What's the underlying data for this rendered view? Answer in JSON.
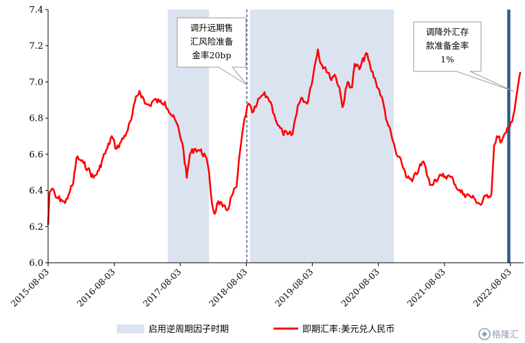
{
  "chart_data": {
    "type": "line",
    "title": "",
    "xlabel": "",
    "ylabel": "",
    "ylim": [
      6.0,
      7.4
    ],
    "yticks": [
      "6.0",
      "6.2",
      "6.4",
      "6.6",
      "6.8",
      "7.0",
      "7.2",
      "7.4"
    ],
    "xlim": [
      "2015-08-03",
      "2022-10-15"
    ],
    "xticks": [
      "2015-08-03",
      "2016-08-03",
      "2017-08-03",
      "2018-08-03",
      "2019-08-03",
      "2020-08-03",
      "2021-08-03",
      "2022-08-03"
    ],
    "grid": false,
    "legend_position": "bottom",
    "shaded_periods": {
      "name": "启用逆周期因子时期",
      "color": "#dbe3f0",
      "ranges": [
        [
          "2017-05-26",
          "2018-01-09"
        ],
        [
          "2018-08-24",
          "2020-10-27"
        ]
      ]
    },
    "event_lines": [
      {
        "date": "2018-08-06",
        "style": "dashed",
        "color": "#1f3864"
      },
      {
        "date": "2022-07-25",
        "style": "solid-thick",
        "color": "#2e5a8a"
      }
    ],
    "annotations": [
      {
        "lines": [
          "调升远期售",
          "汇风险准备",
          "金率20bp"
        ],
        "points_to": "2018-08-06"
      },
      {
        "lines": [
          "调降外汇存",
          "款准备金率",
          "1%"
        ],
        "points_to": "2022-09-05"
      }
    ],
    "series": [
      {
        "name": "即期汇率:美元兑人民币",
        "color": "#ff0000",
        "points": [
          [
            "2015-08-03",
            6.21
          ],
          [
            "2015-08-11",
            6.39
          ],
          [
            "2015-08-25",
            6.41
          ],
          [
            "2015-09-15",
            6.36
          ],
          [
            "2015-10-15",
            6.35
          ],
          [
            "2015-11-05",
            6.33
          ],
          [
            "2015-11-25",
            6.38
          ],
          [
            "2015-12-20",
            6.44
          ],
          [
            "2016-01-07",
            6.58
          ],
          [
            "2016-01-25",
            6.57
          ],
          [
            "2016-02-15",
            6.55
          ],
          [
            "2016-03-10",
            6.52
          ],
          [
            "2016-04-10",
            6.47
          ],
          [
            "2016-05-10",
            6.51
          ],
          [
            "2016-06-01",
            6.58
          ],
          [
            "2016-06-25",
            6.63
          ],
          [
            "2016-07-20",
            6.7
          ],
          [
            "2016-08-15",
            6.63
          ],
          [
            "2016-09-10",
            6.67
          ],
          [
            "2016-10-10",
            6.72
          ],
          [
            "2016-11-05",
            6.79
          ],
          [
            "2016-11-25",
            6.89
          ],
          [
            "2016-12-20",
            6.95
          ],
          [
            "2017-01-05",
            6.92
          ],
          [
            "2017-01-20",
            6.88
          ],
          [
            "2017-02-15",
            6.87
          ],
          [
            "2017-03-10",
            6.9
          ],
          [
            "2017-04-10",
            6.89
          ],
          [
            "2017-05-10",
            6.89
          ],
          [
            "2017-05-26",
            6.85
          ],
          [
            "2017-06-20",
            6.81
          ],
          [
            "2017-07-15",
            6.77
          ],
          [
            "2017-08-15",
            6.66
          ],
          [
            "2017-09-08",
            6.47
          ],
          [
            "2017-09-25",
            6.6
          ],
          [
            "2017-10-20",
            6.63
          ],
          [
            "2017-11-20",
            6.62
          ],
          [
            "2017-12-20",
            6.59
          ],
          [
            "2018-01-09",
            6.5
          ],
          [
            "2018-01-25",
            6.33
          ],
          [
            "2018-02-08",
            6.27
          ],
          [
            "2018-03-01",
            6.34
          ],
          [
            "2018-03-25",
            6.31
          ],
          [
            "2018-04-20",
            6.29
          ],
          [
            "2018-05-15",
            6.37
          ],
          [
            "2018-06-10",
            6.42
          ],
          [
            "2018-06-30",
            6.62
          ],
          [
            "2018-07-25",
            6.8
          ],
          [
            "2018-08-15",
            6.88
          ],
          [
            "2018-09-05",
            6.83
          ],
          [
            "2018-09-25",
            6.86
          ],
          [
            "2018-10-15",
            6.91
          ],
          [
            "2018-11-05",
            6.93
          ],
          [
            "2018-11-25",
            6.92
          ],
          [
            "2018-12-15",
            6.89
          ],
          [
            "2019-01-05",
            6.82
          ],
          [
            "2019-01-25",
            6.76
          ],
          [
            "2019-02-20",
            6.72
          ],
          [
            "2019-03-20",
            6.71
          ],
          [
            "2019-04-15",
            6.71
          ],
          [
            "2019-05-15",
            6.87
          ],
          [
            "2019-06-10",
            6.91
          ],
          [
            "2019-07-05",
            6.88
          ],
          [
            "2019-08-10",
            7.05
          ],
          [
            "2019-09-03",
            7.18
          ],
          [
            "2019-09-20",
            7.1
          ],
          [
            "2019-10-15",
            7.08
          ],
          [
            "2019-11-10",
            7.02
          ],
          [
            "2019-12-05",
            7.04
          ],
          [
            "2019-12-31",
            6.97
          ],
          [
            "2020-01-17",
            6.86
          ],
          [
            "2020-02-15",
            7.0
          ],
          [
            "2020-03-10",
            6.97
          ],
          [
            "2020-03-25",
            7.1
          ],
          [
            "2020-04-20",
            7.07
          ],
          [
            "2020-05-27",
            7.16
          ],
          [
            "2020-06-20",
            7.08
          ],
          [
            "2020-07-20",
            7.0
          ],
          [
            "2020-08-20",
            6.92
          ],
          [
            "2020-09-20",
            6.78
          ],
          [
            "2020-10-15",
            6.7
          ],
          [
            "2020-11-10",
            6.6
          ],
          [
            "2020-12-10",
            6.55
          ],
          [
            "2021-01-10",
            6.47
          ],
          [
            "2021-02-05",
            6.45
          ],
          [
            "2021-03-15",
            6.52
          ],
          [
            "2021-04-10",
            6.56
          ],
          [
            "2021-05-15",
            6.43
          ],
          [
            "2021-06-15",
            6.46
          ],
          [
            "2021-07-20",
            6.48
          ],
          [
            "2021-08-20",
            6.48
          ],
          [
            "2021-09-20",
            6.46
          ],
          [
            "2021-10-20",
            6.4
          ],
          [
            "2021-11-20",
            6.38
          ],
          [
            "2021-12-20",
            6.37
          ],
          [
            "2022-01-20",
            6.35
          ],
          [
            "2022-02-20",
            6.32
          ],
          [
            "2022-03-20",
            6.37
          ],
          [
            "2022-04-20",
            6.38
          ],
          [
            "2022-05-05",
            6.65
          ],
          [
            "2022-05-20",
            6.7
          ],
          [
            "2022-06-15",
            6.67
          ],
          [
            "2022-07-10",
            6.72
          ],
          [
            "2022-07-30",
            6.75
          ],
          [
            "2022-08-20",
            6.82
          ],
          [
            "2022-09-05",
            6.92
          ],
          [
            "2022-09-20",
            7.02
          ],
          [
            "2022-10-01",
            7.05
          ]
        ]
      }
    ]
  },
  "legend": {
    "shaded_label": "启用逆周期因子时期",
    "line_label": "即期汇率:美元兑人民币"
  },
  "watermark": {
    "text": "格隆汇"
  }
}
